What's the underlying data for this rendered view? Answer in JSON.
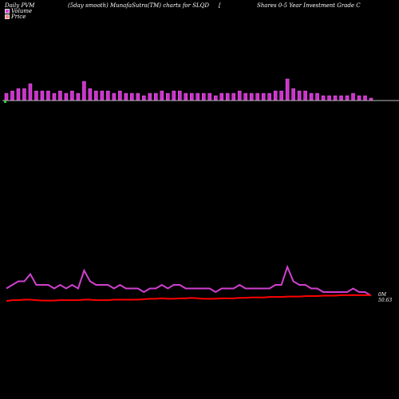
{
  "header": {
    "left": "Daily PVM",
    "mid": "(5day smooth) MunafaSutra(TM) charts for SLQD",
    "bracket": "[",
    "right": "Shares 0-5 Year Investment Grade  C"
  },
  "legend": {
    "volume_label": "Volume",
    "price_label": "Price",
    "volume_color": "#e040e0",
    "price_color": "#ff8080"
  },
  "colors": {
    "background": "#000000",
    "volume_bar": "#cc33cc",
    "volume_bar_edge": "#ff66ff",
    "volume_baseline": "#bbbbbb",
    "volume_line": "#d040d0",
    "price_line": "#ff0000",
    "down_marker": "#33cc33"
  },
  "chart_data": {
    "type": "bar",
    "title": "(5day smooth) MunafaSutra(TM) charts for SLQD",
    "series": [
      {
        "name": "Volume",
        "values": [
          3,
          4,
          5,
          5,
          7,
          4,
          4,
          4,
          3,
          4,
          3,
          4,
          3,
          8,
          5,
          4,
          4,
          4,
          3,
          4,
          3,
          3,
          3,
          2,
          3,
          3,
          4,
          3,
          4,
          4,
          3,
          3,
          3,
          3,
          3,
          2,
          3,
          3,
          3,
          4,
          3,
          3,
          3,
          3,
          3,
          4,
          4,
          9,
          5,
          4,
          4,
          3,
          3,
          2,
          2,
          2,
          2,
          2,
          3,
          2,
          2,
          1
        ]
      },
      {
        "name": "Price",
        "values": [
          50.5,
          50.52,
          50.52,
          50.53,
          50.53,
          50.52,
          50.51,
          50.51,
          50.51,
          50.52,
          50.52,
          50.52,
          50.52,
          50.53,
          50.53,
          50.52,
          50.52,
          50.52,
          50.53,
          50.53,
          50.53,
          50.53,
          50.53,
          50.54,
          50.55,
          50.55,
          50.56,
          50.55,
          50.55,
          50.56,
          50.56,
          50.57,
          50.56,
          50.55,
          50.55,
          50.55,
          50.56,
          50.56,
          50.56,
          50.57,
          50.57,
          50.58,
          50.58,
          50.58,
          50.59,
          50.59,
          50.59,
          50.6,
          50.6,
          50.6,
          50.61,
          50.61,
          50.61,
          50.62,
          50.62,
          50.62,
          50.63,
          50.63,
          50.63,
          50.63,
          50.63,
          50.63
        ]
      }
    ],
    "volume_label": "0M",
    "price_label": "50.63"
  }
}
